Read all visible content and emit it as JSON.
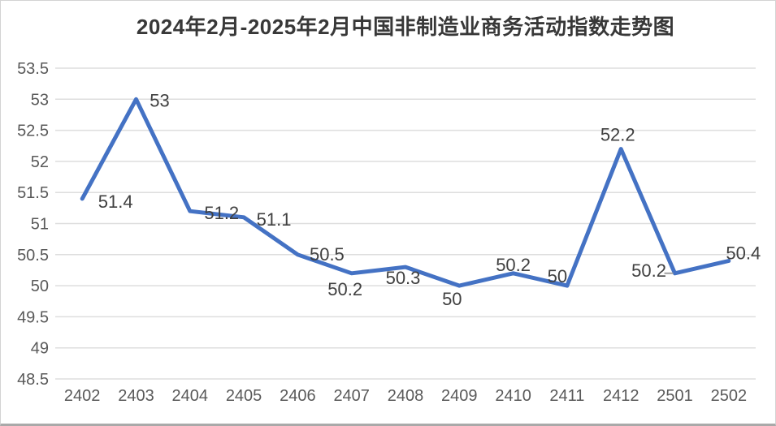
{
  "chart_data": {
    "type": "line",
    "title": "2024年2月-2025年2月中国非制造业商务活动指数走势图",
    "categories": [
      "2402",
      "2403",
      "2404",
      "2405",
      "2406",
      "2407",
      "2408",
      "2409",
      "2410",
      "2411",
      "2412",
      "2501",
      "2502"
    ],
    "series": [
      {
        "name": "非制造业商务活动指数",
        "values": [
          51.4,
          53,
          51.2,
          51.1,
          50.5,
          50.2,
          50.3,
          50,
          50.2,
          50,
          52.2,
          50.2,
          50.4
        ]
      }
    ],
    "data_labels": [
      "51.4",
      "53",
      "51.2",
      "51.1",
      "50.5",
      "50.2",
      "50.3",
      "50",
      "50.2",
      "50",
      "52.2",
      "50.2",
      "50.4"
    ],
    "xlabel": "",
    "ylabel": "",
    "ylim": [
      48.5,
      53.5
    ],
    "ytick_step": 0.5,
    "yticks": [
      "53.5",
      "53",
      "52.5",
      "52",
      "51.5",
      "51",
      "50.5",
      "50",
      "49.5",
      "49",
      "48.5"
    ],
    "grid": true,
    "legend": false
  },
  "colors": {
    "line": "#4472C4",
    "gridline": "#dedede",
    "axis_tick": "#595959",
    "data_label": "#404040",
    "title": "#383838",
    "leader_line": "#a0a0a0",
    "background": "#ffffff"
  }
}
